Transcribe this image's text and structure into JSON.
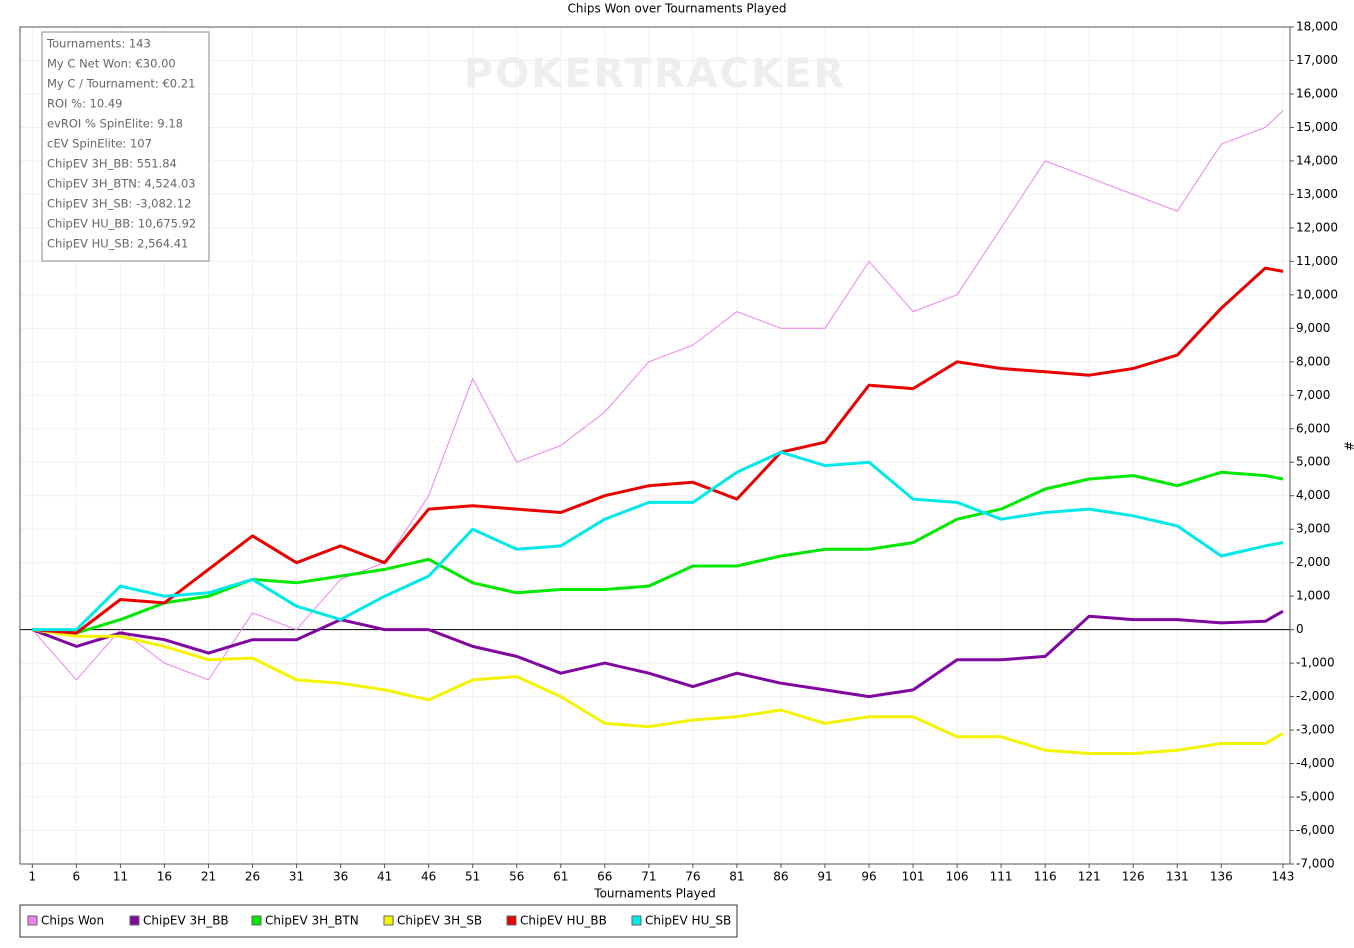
{
  "chart_data": {
    "type": "line",
    "title": "Chips Won over Tournaments Played",
    "x_label": "Tournaments Played",
    "y_label": "#",
    "watermark": "POKERTRACKER",
    "stats": [
      "Tournaments: 143",
      "My C Net Won: €30.00",
      "My C / Tournament: €0.21",
      "ROI %: 10.49",
      "evROI % SpinElite: 9.18",
      "cEV SpinElite: 107",
      "ChipEV 3H_BB: 551.84",
      "ChipEV 3H_BTN: 4,524.03",
      "ChipEV 3H_SB: -3,082.12",
      "ChipEV HU_BB: 10,675.92",
      "ChipEV HU_SB: 2,564.41"
    ],
    "grid": true,
    "legend": "bottom",
    "xlim": [
      -0.4,
      143.8
    ],
    "ylim": [
      -7000,
      18000
    ],
    "xticks": [
      1,
      6,
      11,
      16,
      21,
      26,
      31,
      36,
      41,
      46,
      51,
      56,
      61,
      66,
      71,
      76,
      81,
      86,
      91,
      96,
      101,
      106,
      111,
      116,
      121,
      126,
      131,
      136,
      143
    ],
    "yticks": [
      {
        "value": -7000,
        "label": "-7,000"
      },
      {
        "value": -6000,
        "label": "-6,000"
      },
      {
        "value": -5000,
        "label": "-5,000"
      },
      {
        "value": -4000,
        "label": "-4,000"
      },
      {
        "value": -3000,
        "label": "-3,000"
      },
      {
        "value": -2000,
        "label": "-2,000"
      },
      {
        "value": -1000,
        "label": "-1,000"
      },
      0,
      {
        "value": 1000,
        "label": "1,000"
      },
      {
        "value": 2000,
        "label": "2,000"
      },
      {
        "value": 3000,
        "label": "3,000"
      },
      {
        "value": 4000,
        "label": "4,000"
      },
      {
        "value": 5000,
        "label": "5,000"
      },
      {
        "value": 6000,
        "label": "6,000"
      },
      {
        "value": 7000,
        "label": "7,000"
      },
      {
        "value": 8000,
        "label": "8,000"
      },
      {
        "value": 9000,
        "label": "9,000"
      },
      {
        "value": 10000,
        "label": "10,000"
      },
      {
        "value": 11000,
        "label": "11,000"
      },
      {
        "value": 12000,
        "label": "12,000"
      },
      {
        "value": 13000,
        "label": "13,000"
      },
      {
        "value": 14000,
        "label": "14,000"
      },
      {
        "value": 15000,
        "label": "15,000"
      },
      {
        "value": 16000,
        "label": "16,000"
      },
      {
        "value": 17000,
        "label": "17,000"
      },
      {
        "value": 18000,
        "label": "18,000"
      }
    ],
    "x": [
      1,
      6,
      11,
      16,
      21,
      26,
      31,
      36,
      41,
      46,
      51,
      56,
      61,
      66,
      71,
      76,
      81,
      86,
      91,
      96,
      101,
      106,
      111,
      116,
      121,
      126,
      131,
      136,
      141,
      143
    ],
    "series": [
      {
        "name": "Chips Won",
        "color": "#ee82ee",
        "width": 1,
        "values": [
          0,
          -1500,
          0,
          -1000,
          -1500,
          500,
          0,
          1500,
          2000,
          4000,
          7500,
          5000,
          5500,
          6500,
          8000,
          8500,
          9500,
          9000,
          9000,
          11000,
          9500,
          10000,
          12000,
          14000,
          13500,
          13000,
          12500,
          14500,
          15000,
          15500
        ]
      },
      {
        "name": "ChipEV 3H_BB",
        "color": "#80079f",
        "width": 3,
        "values": [
          0,
          -500,
          -100,
          -300,
          -700,
          -300,
          -300,
          300,
          0,
          0,
          -500,
          -800,
          -1300,
          -1000,
          -1300,
          -1700,
          -1300,
          -1600,
          -1800,
          -2000,
          -1800,
          -900,
          -900,
          -800,
          400,
          300,
          300,
          200,
          250,
          550
        ]
      },
      {
        "name": "ChipEV 3H_BTN",
        "color": "#00e800",
        "width": 3,
        "values": [
          0,
          -100,
          300,
          800,
          1000,
          1500,
          1400,
          1600,
          1800,
          2100,
          1400,
          1100,
          1200,
          1200,
          1300,
          1900,
          1900,
          2200,
          2400,
          2400,
          2600,
          3300,
          3600,
          4200,
          4500,
          4600,
          4300,
          4700,
          4600,
          4500
        ]
      },
      {
        "name": "ChipEV 3H_SB",
        "color": "#f4f400",
        "width": 3,
        "values": [
          0,
          -200,
          -200,
          -500,
          -900,
          -850,
          -1500,
          -1600,
          -1800,
          -2100,
          -1500,
          -1400,
          -2000,
          -2800,
          -2900,
          -2700,
          -2600,
          -2400,
          -2800,
          -2600,
          -2600,
          -3200,
          -3200,
          -3600,
          -3700,
          -3700,
          -3600,
          -3400,
          -3400,
          -3100
        ]
      },
      {
        "name": "ChipEV HU_BB",
        "color": "#e80000",
        "width": 3,
        "values": [
          0,
          -100,
          900,
          800,
          1800,
          2800,
          2000,
          2500,
          2000,
          3600,
          3700,
          3600,
          3500,
          4000,
          4300,
          4400,
          3900,
          5300,
          5600,
          7300,
          7200,
          8000,
          7800,
          7700,
          7600,
          7800,
          8200,
          9600,
          10800,
          10700
        ]
      },
      {
        "name": "ChipEV HU_SB",
        "color": "#00e8e8",
        "width": 3,
        "values": [
          0,
          0,
          1300,
          1000,
          1100,
          1500,
          700,
          300,
          1000,
          1600,
          3000,
          2400,
          2500,
          3300,
          3800,
          3800,
          4700,
          5300,
          4900,
          5000,
          3900,
          3800,
          3300,
          3500,
          3600,
          3400,
          3100,
          2200,
          2500,
          2600
        ]
      }
    ]
  }
}
